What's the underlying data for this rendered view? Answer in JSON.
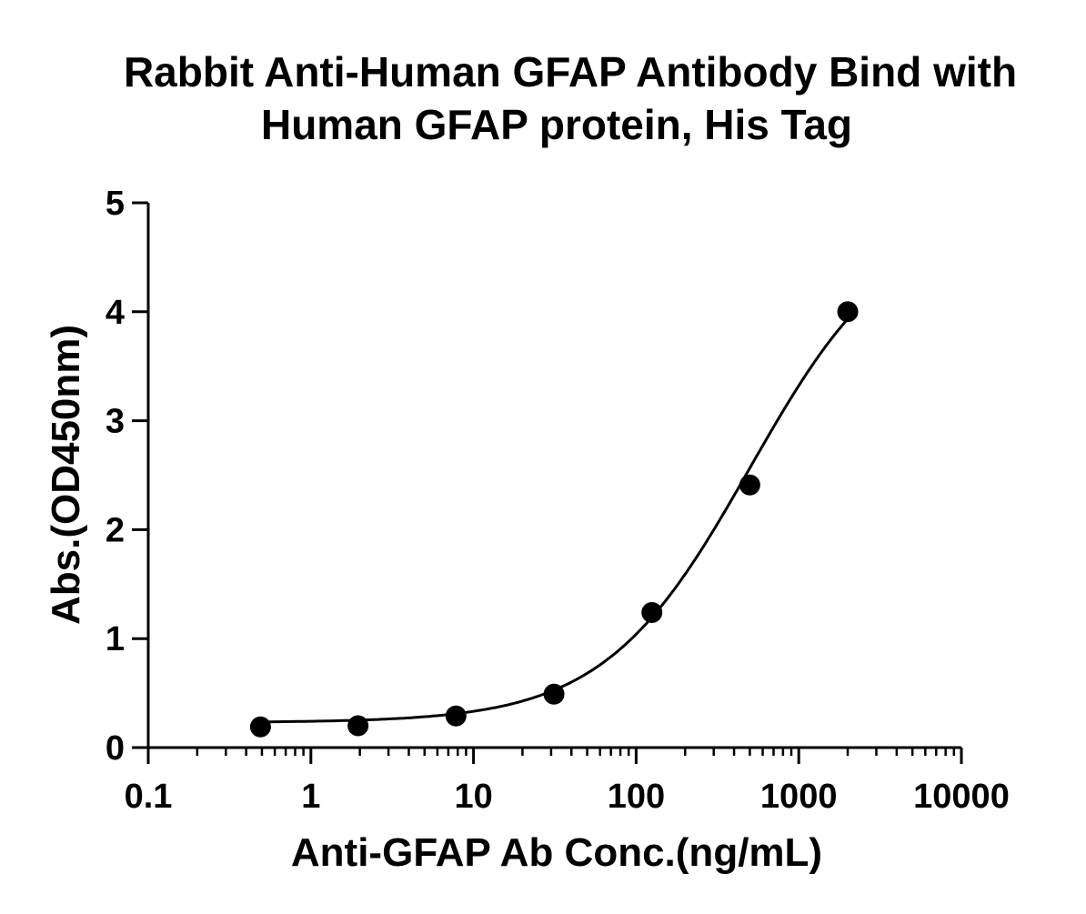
{
  "chart_data": {
    "type": "scatter",
    "title_lines": [
      "Rabbit Anti-Human GFAP Antibody Bind with",
      "Human GFAP protein, His Tag"
    ],
    "xlabel": "Anti-GFAP Ab Conc.(ng/mL)",
    "ylabel": "Abs.(OD450nm)",
    "x_scale": "log",
    "xlim": [
      0.1,
      10000
    ],
    "ylim": [
      0,
      5
    ],
    "x_ticks": [
      0.1,
      1,
      10,
      100,
      1000,
      10000
    ],
    "x_tick_labels": [
      "0.1",
      "1",
      "10",
      "100",
      "1000",
      "10000"
    ],
    "y_ticks": [
      0,
      1,
      2,
      3,
      4,
      5
    ],
    "y_tick_labels": [
      "0",
      "1",
      "2",
      "3",
      "4",
      "5"
    ],
    "grid": false,
    "legend": "none",
    "series": [
      {
        "x": [
          0.49,
          1.95,
          7.8,
          31.25,
          125,
          500,
          2000
        ],
        "y": [
          0.19,
          0.2,
          0.29,
          0.49,
          1.24,
          2.41,
          4.0
        ],
        "fit": "sigmoidal",
        "color": "#000000"
      }
    ]
  }
}
